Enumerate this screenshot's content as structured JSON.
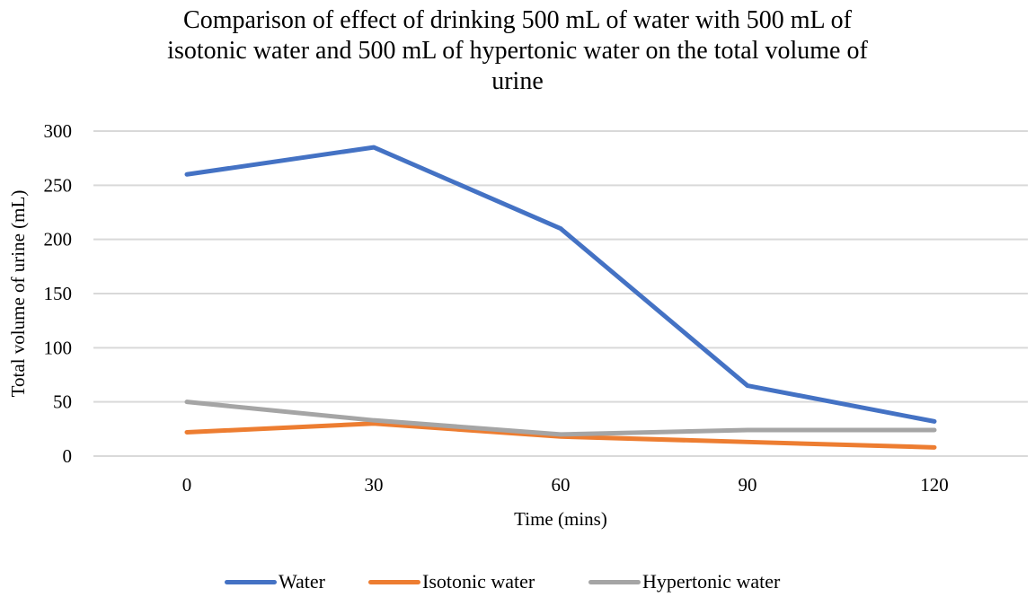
{
  "chart_data": {
    "type": "line",
    "title_lines": [
      "Comparison of effect of drinking 500 mL of water with 500 mL of",
      "isotonic water and 500 mL of hypertonic water on the total volume of",
      "urine"
    ],
    "title": "Comparison of effect of drinking 500 mL of water with 500 mL of isotonic water and 500 mL of hypertonic water on the total volume of urine",
    "xlabel": "Time (mins)",
    "ylabel": "Total volume of urine (mL)",
    "categories": [
      "0",
      "30",
      "60",
      "90",
      "120"
    ],
    "ylim": [
      0,
      300
    ],
    "yticks": [
      "0",
      "50",
      "100",
      "150",
      "200",
      "250",
      "300"
    ],
    "ytick_values": [
      0,
      50,
      100,
      150,
      200,
      250,
      300
    ],
    "grid": true,
    "legend_position": "bottom",
    "series": [
      {
        "name": "Water",
        "color": "#4472C4",
        "values": [
          260,
          285,
          210,
          65,
          32
        ]
      },
      {
        "name": "Isotonic water",
        "color": "#ED7D31",
        "values": [
          22,
          30,
          18,
          13,
          8
        ]
      },
      {
        "name": "Hypertonic water",
        "color": "#A5A5A5",
        "values": [
          50,
          33,
          20,
          24,
          24
        ]
      }
    ]
  }
}
